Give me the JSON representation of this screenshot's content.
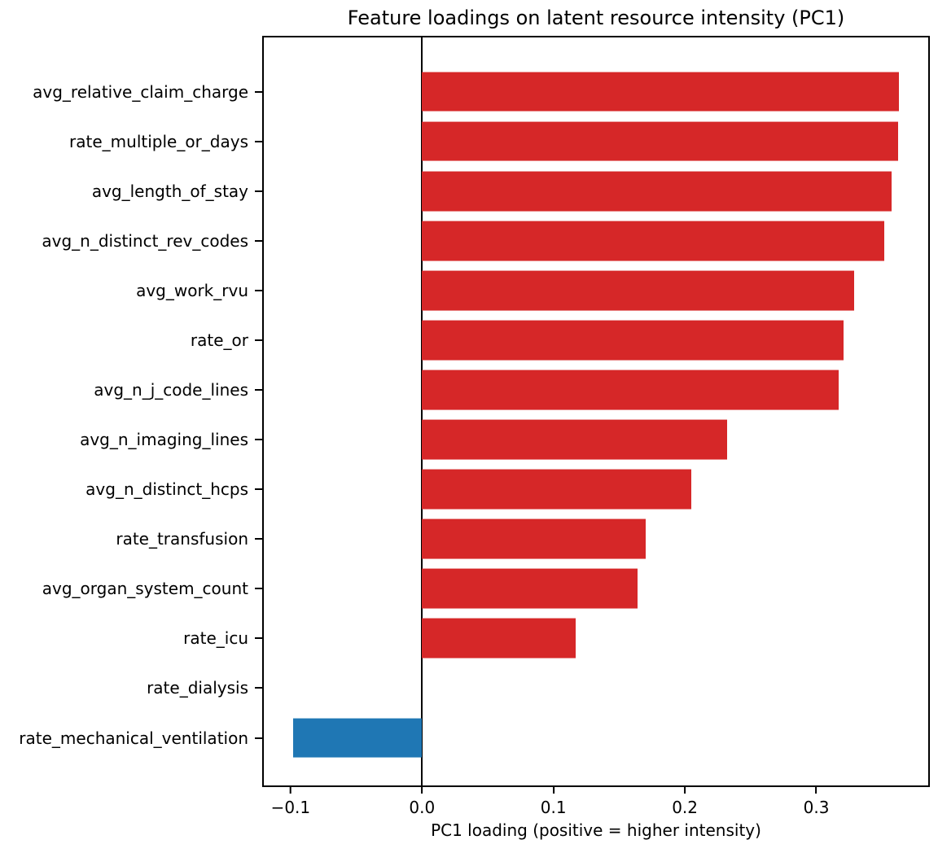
{
  "title": "Feature loadings on latent resource intensity (PC1)",
  "chart_data": {
    "type": "bar",
    "orientation": "horizontal",
    "title": "Feature loadings on latent resource intensity (PC1)",
    "xlabel": "PC1 loading (positive = higher intensity)",
    "ylabel": "",
    "categories": [
      "avg_relative_claim_charge",
      "rate_multiple_or_days",
      "avg_length_of_stay",
      "avg_n_distinct_rev_codes",
      "avg_work_rvu",
      "rate_or",
      "avg_n_j_code_lines",
      "avg_n_imaging_lines",
      "avg_n_distinct_hcps",
      "rate_transfusion",
      "avg_organ_system_count",
      "rate_icu",
      "rate_dialysis",
      "rate_mechanical_ventilation"
    ],
    "values": [
      0.363,
      0.362,
      0.357,
      0.352,
      0.329,
      0.321,
      0.317,
      0.232,
      0.205,
      0.17,
      0.164,
      0.117,
      0.0,
      -0.098
    ],
    "xlim": [
      -0.1216,
      0.3864
    ],
    "xticks": [
      -0.1,
      0.0,
      0.1,
      0.2,
      0.3
    ],
    "xtick_labels": [
      "−0.1",
      "0.0",
      "0.1",
      "0.2",
      "0.3"
    ],
    "grid": false,
    "legend": null,
    "zero_line": true,
    "colors": {
      "positive": "#d62728",
      "negative": "#1f77b4",
      "axis": "#000000",
      "background": "#ffffff"
    }
  }
}
